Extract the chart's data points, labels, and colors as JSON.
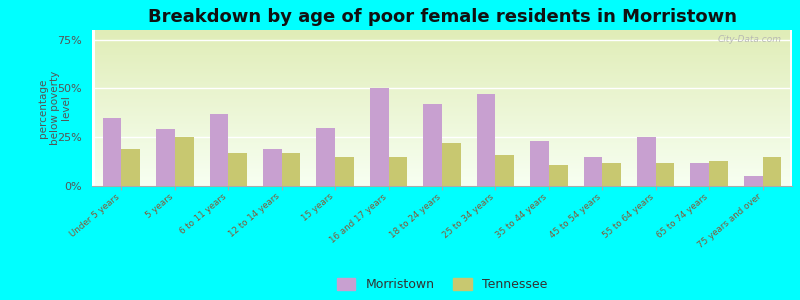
{
  "title": "Breakdown by age of poor female residents in Morristown",
  "categories": [
    "Under 5 years",
    "5 years",
    "6 to 11 years",
    "12 to 14 years",
    "15 years",
    "16 and 17 years",
    "18 to 24 years",
    "25 to 34 years",
    "35 to 44 years",
    "45 to 54 years",
    "55 to 64 years",
    "65 to 74 years",
    "75 years and over"
  ],
  "morristown": [
    35,
    29,
    37,
    19,
    30,
    50,
    42,
    47,
    23,
    15,
    25,
    12,
    5
  ],
  "tennessee": [
    19,
    25,
    17,
    17,
    15,
    15,
    22,
    16,
    11,
    12,
    12,
    13,
    15
  ],
  "morristown_color": "#c8a0d0",
  "tennessee_color": "#c8c870",
  "background_color": "#00ffff",
  "ylabel": "percentage\nbelow poverty\nlevel",
  "yticks": [
    0,
    25,
    50,
    75
  ],
  "ytick_labels": [
    "0%",
    "25%",
    "50%",
    "75%"
  ],
  "title_fontsize": 13,
  "watermark": "City-Data.com",
  "bar_width": 0.35,
  "ylim": [
    0,
    80
  ]
}
